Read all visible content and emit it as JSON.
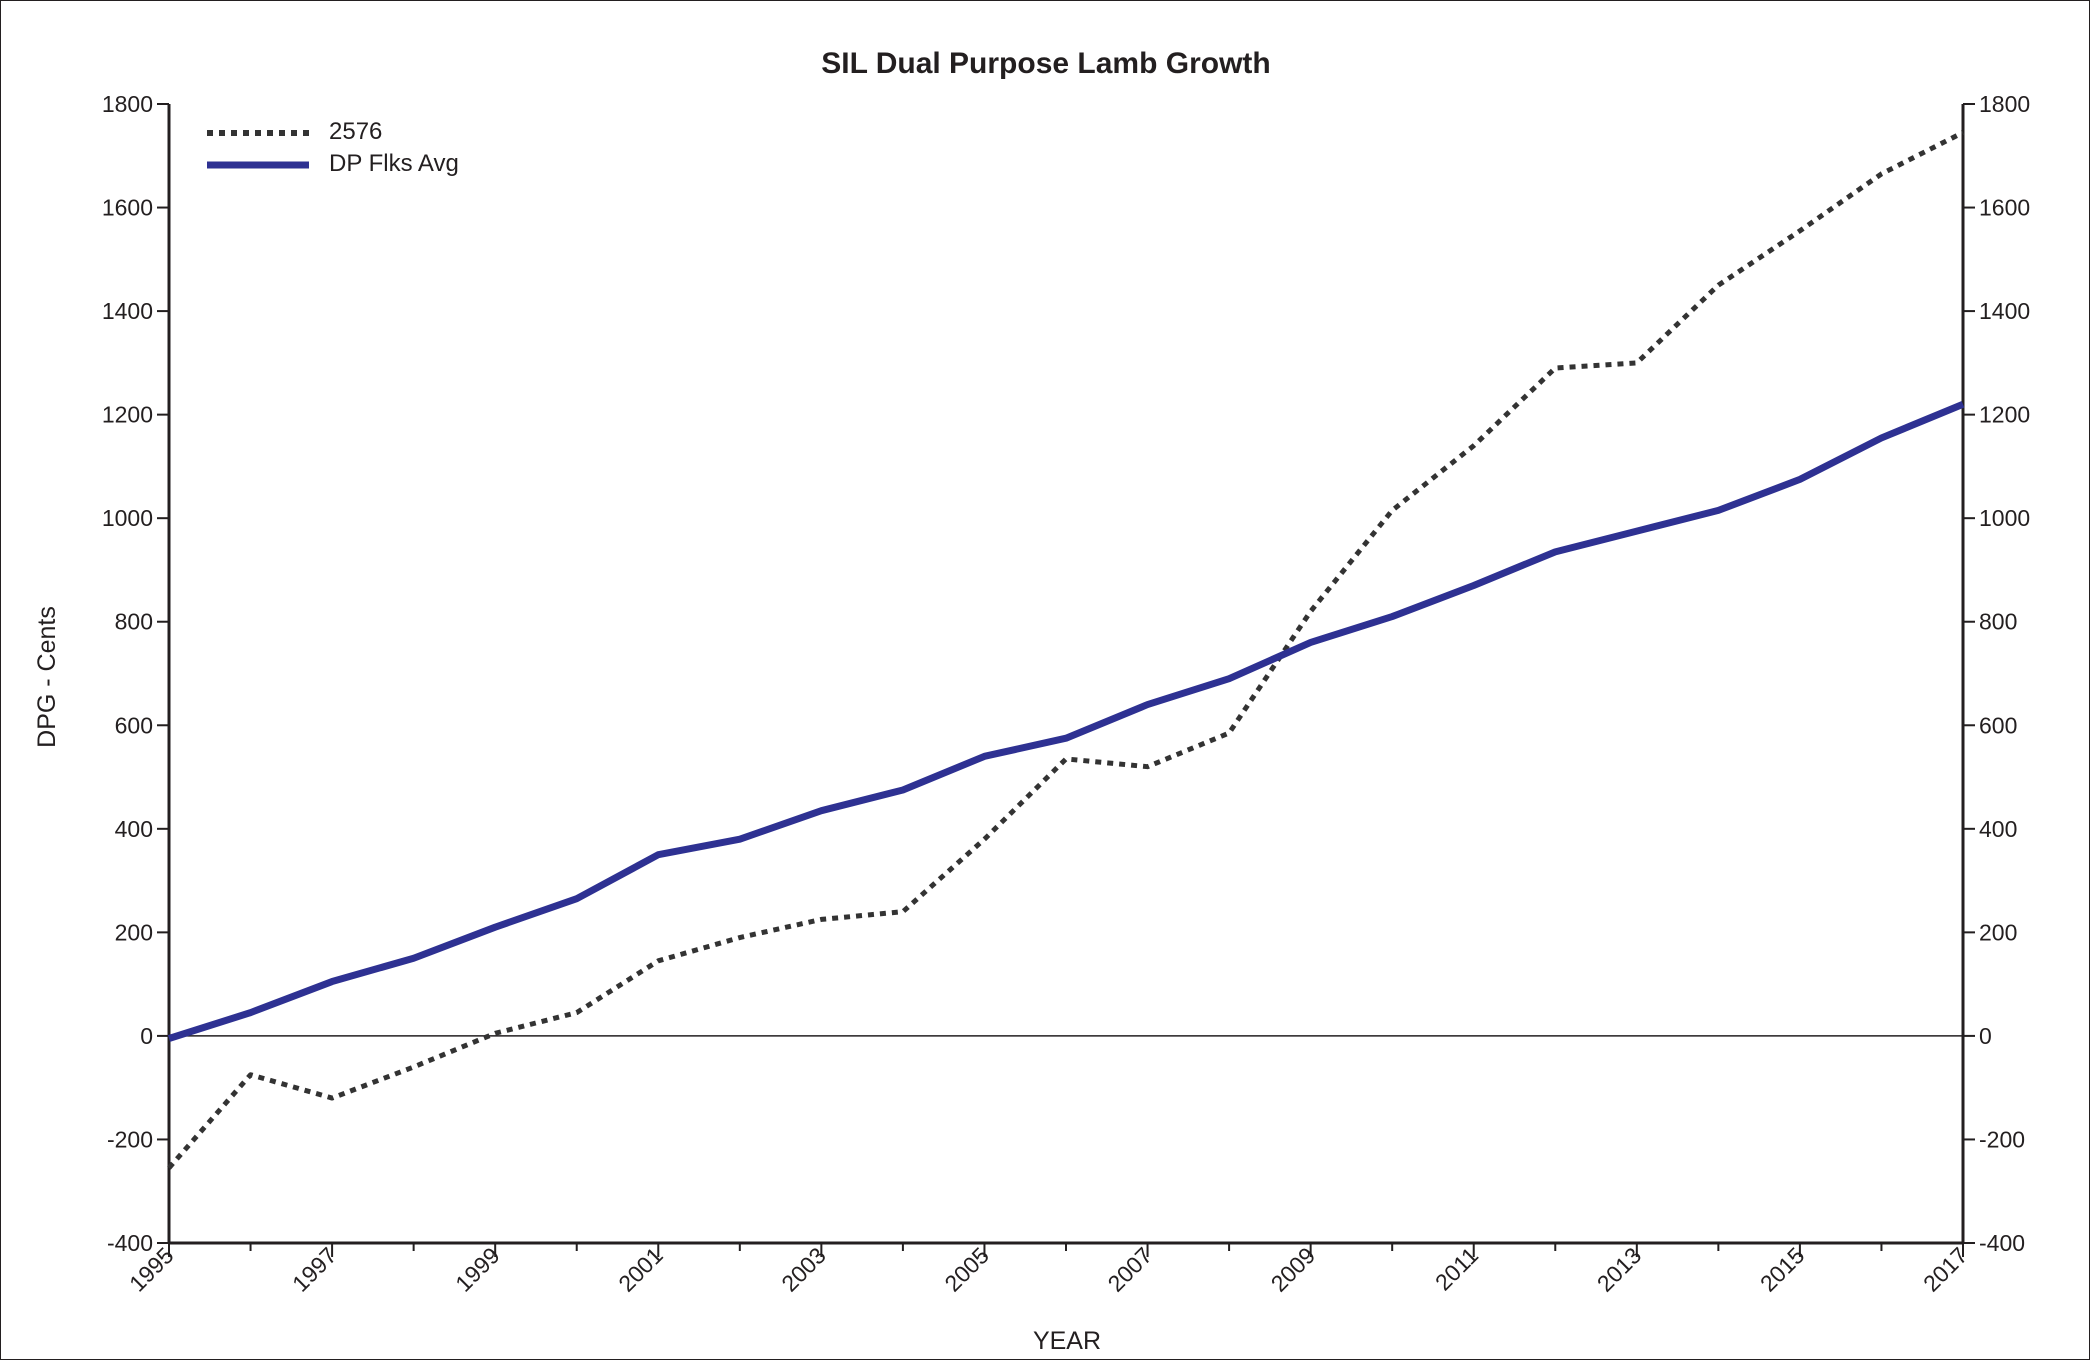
{
  "chart_data": {
    "type": "line",
    "title": "SIL Dual Purpose Lamb Growth",
    "xlabel": "YEAR",
    "ylabel": "DPG - Cents",
    "xlim": [
      1995,
      2017
    ],
    "ylim": [
      -400,
      1800
    ],
    "x_ticks": [
      "1995",
      "1997",
      "1999",
      "2001",
      "2003",
      "2005",
      "2007",
      "2009",
      "2011",
      "2013",
      "2015",
      "2017"
    ],
    "y_ticks": [
      "-400",
      "-200",
      "0",
      "200",
      "400",
      "600",
      "800",
      "1000",
      "1200",
      "1400",
      "1600",
      "1800"
    ],
    "secondary_y_axis": true,
    "grid": false,
    "zero_line": true,
    "legend_position": "top-left",
    "x": [
      1995,
      1996,
      1997,
      1998,
      1999,
      2000,
      2001,
      2002,
      2003,
      2004,
      2005,
      2006,
      2007,
      2008,
      2009,
      2010,
      2011,
      2012,
      2013,
      2014,
      2015,
      2016,
      2017
    ],
    "series": [
      {
        "name": "2576",
        "style": "dotted",
        "color": "#333333",
        "values": [
          -255,
          -75,
          -120,
          -60,
          5,
          45,
          145,
          190,
          225,
          240,
          380,
          535,
          520,
          585,
          820,
          1015,
          1140,
          1290,
          1300,
          1450,
          1555,
          1665,
          1745
        ]
      },
      {
        "name": "DP Flks Avg",
        "style": "solid",
        "color": "#2e3192",
        "values": [
          -5,
          45,
          105,
          150,
          210,
          265,
          350,
          380,
          435,
          475,
          540,
          575,
          640,
          690,
          760,
          810,
          870,
          935,
          975,
          1015,
          1075,
          1155,
          1220
        ]
      }
    ]
  }
}
